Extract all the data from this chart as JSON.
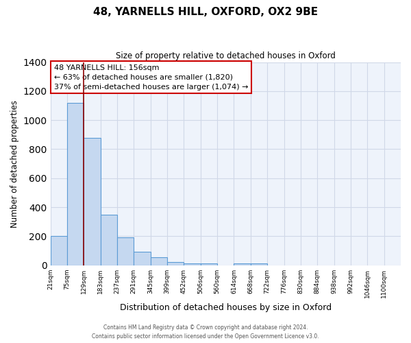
{
  "title": "48, YARNELLS HILL, OXFORD, OX2 9BE",
  "subtitle": "Size of property relative to detached houses in Oxford",
  "xlabel": "Distribution of detached houses by size in Oxford",
  "ylabel": "Number of detached properties",
  "bar_labels": [
    "21sqm",
    "75sqm",
    "129sqm",
    "183sqm",
    "237sqm",
    "291sqm",
    "345sqm",
    "399sqm",
    "452sqm",
    "506sqm",
    "560sqm",
    "614sqm",
    "668sqm",
    "722sqm",
    "776sqm",
    "830sqm",
    "884sqm",
    "938sqm",
    "992sqm",
    "1046sqm",
    "1100sqm"
  ],
  "bar_heights": [
    200,
    1120,
    880,
    350,
    190,
    95,
    55,
    20,
    15,
    15,
    0,
    15,
    15,
    0,
    0,
    0,
    0,
    0,
    0,
    0,
    0
  ],
  "bar_color": "#c5d8f0",
  "bar_edge_color": "#5b9bd5",
  "grid_color": "#d0d8e8",
  "background_color": "#eef3fb",
  "vline_color": "#8b0000",
  "annotation_text_line1": "48 YARNELLS HILL: 156sqm",
  "annotation_text_line2": "← 63% of detached houses are smaller (1,820)",
  "annotation_text_line3": "37% of semi-detached houses are larger (1,074) →",
  "annotation_box_edgecolor": "#cc0000",
  "ylim": [
    0,
    1400
  ],
  "yticks": [
    0,
    200,
    400,
    600,
    800,
    1000,
    1200,
    1400
  ],
  "footer_line1": "Contains HM Land Registry data © Crown copyright and database right 2024.",
  "footer_line2": "Contains public sector information licensed under the Open Government Licence v3.0."
}
